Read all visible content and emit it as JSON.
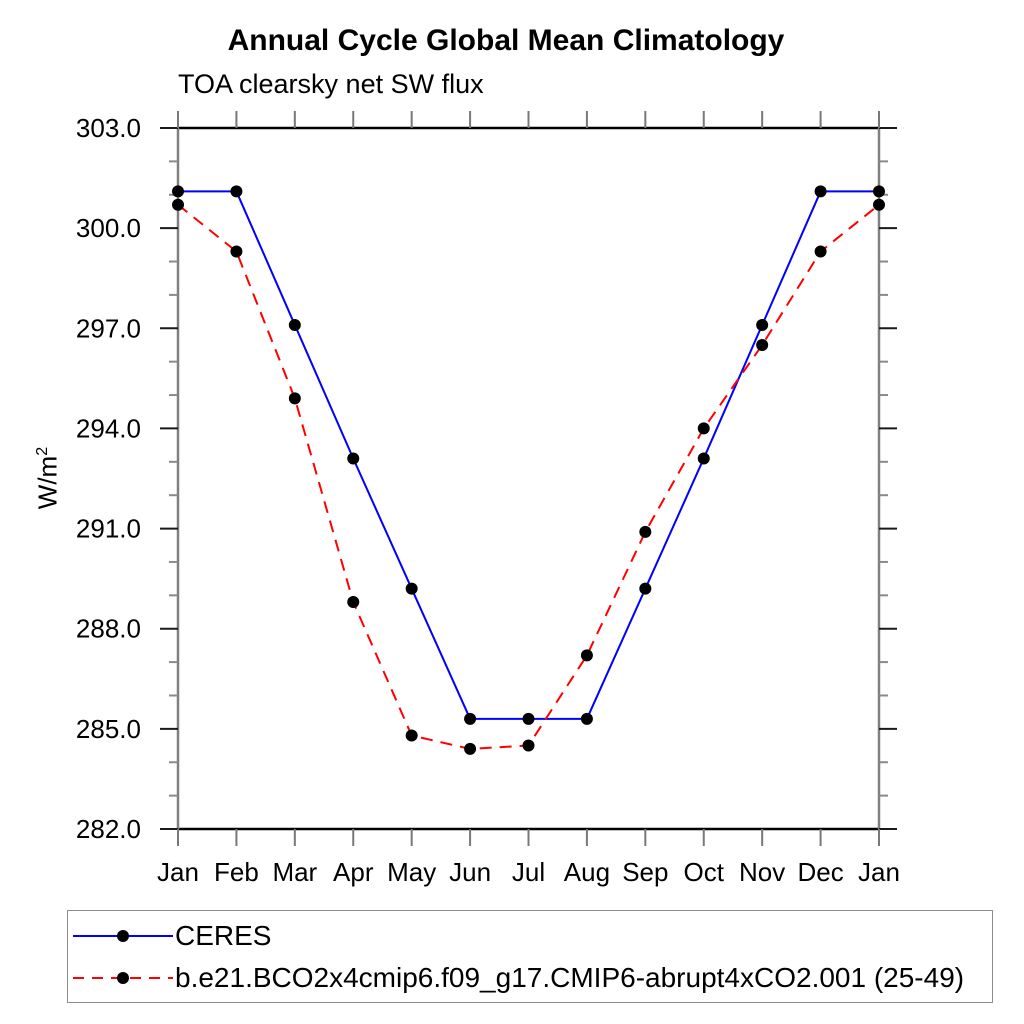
{
  "page": {
    "background": "#ffffff"
  },
  "chart_data": {
    "type": "line",
    "title": "Annual Cycle Global Mean Climatology",
    "subtitle": "TOA clearsky net SW flux",
    "ylabel": {
      "base": "W/m",
      "sup": "2"
    },
    "x_tick_labels": [
      "Jan",
      "Feb",
      "Mar",
      "Apr",
      "May",
      "Jun",
      "Jul",
      "Aug",
      "Sep",
      "Oct",
      "Nov",
      "Dec",
      "Jan"
    ],
    "y_axis": {
      "min": 282.0,
      "max": 303.0,
      "major_tick_labels": [
        "282.0",
        "285.0",
        "288.0",
        "291.0",
        "294.0",
        "297.0",
        "300.0",
        "303.0"
      ],
      "minor_tick_step": 1.0
    },
    "grid": "off",
    "legend_position": "bottom-left-box",
    "marker_color": "#000000",
    "series": [
      {
        "name": "CERES",
        "color": "#0000ff",
        "line_style": "solid",
        "values": [
          301.1,
          301.1,
          297.1,
          293.1,
          289.2,
          285.3,
          285.3,
          285.3,
          289.2,
          293.1,
          297.1,
          301.1,
          301.1
        ]
      },
      {
        "name": "b.e21.BCO2x4cmip6.f09_g17.CMIP6-abrupt4xCO2.001 (25-49)",
        "color": "#ff0000",
        "line_style": "dashed",
        "values": [
          300.7,
          299.3,
          294.9,
          288.8,
          284.8,
          284.4,
          284.5,
          287.2,
          290.9,
          294.0,
          296.5,
          299.3,
          300.7
        ]
      }
    ]
  }
}
